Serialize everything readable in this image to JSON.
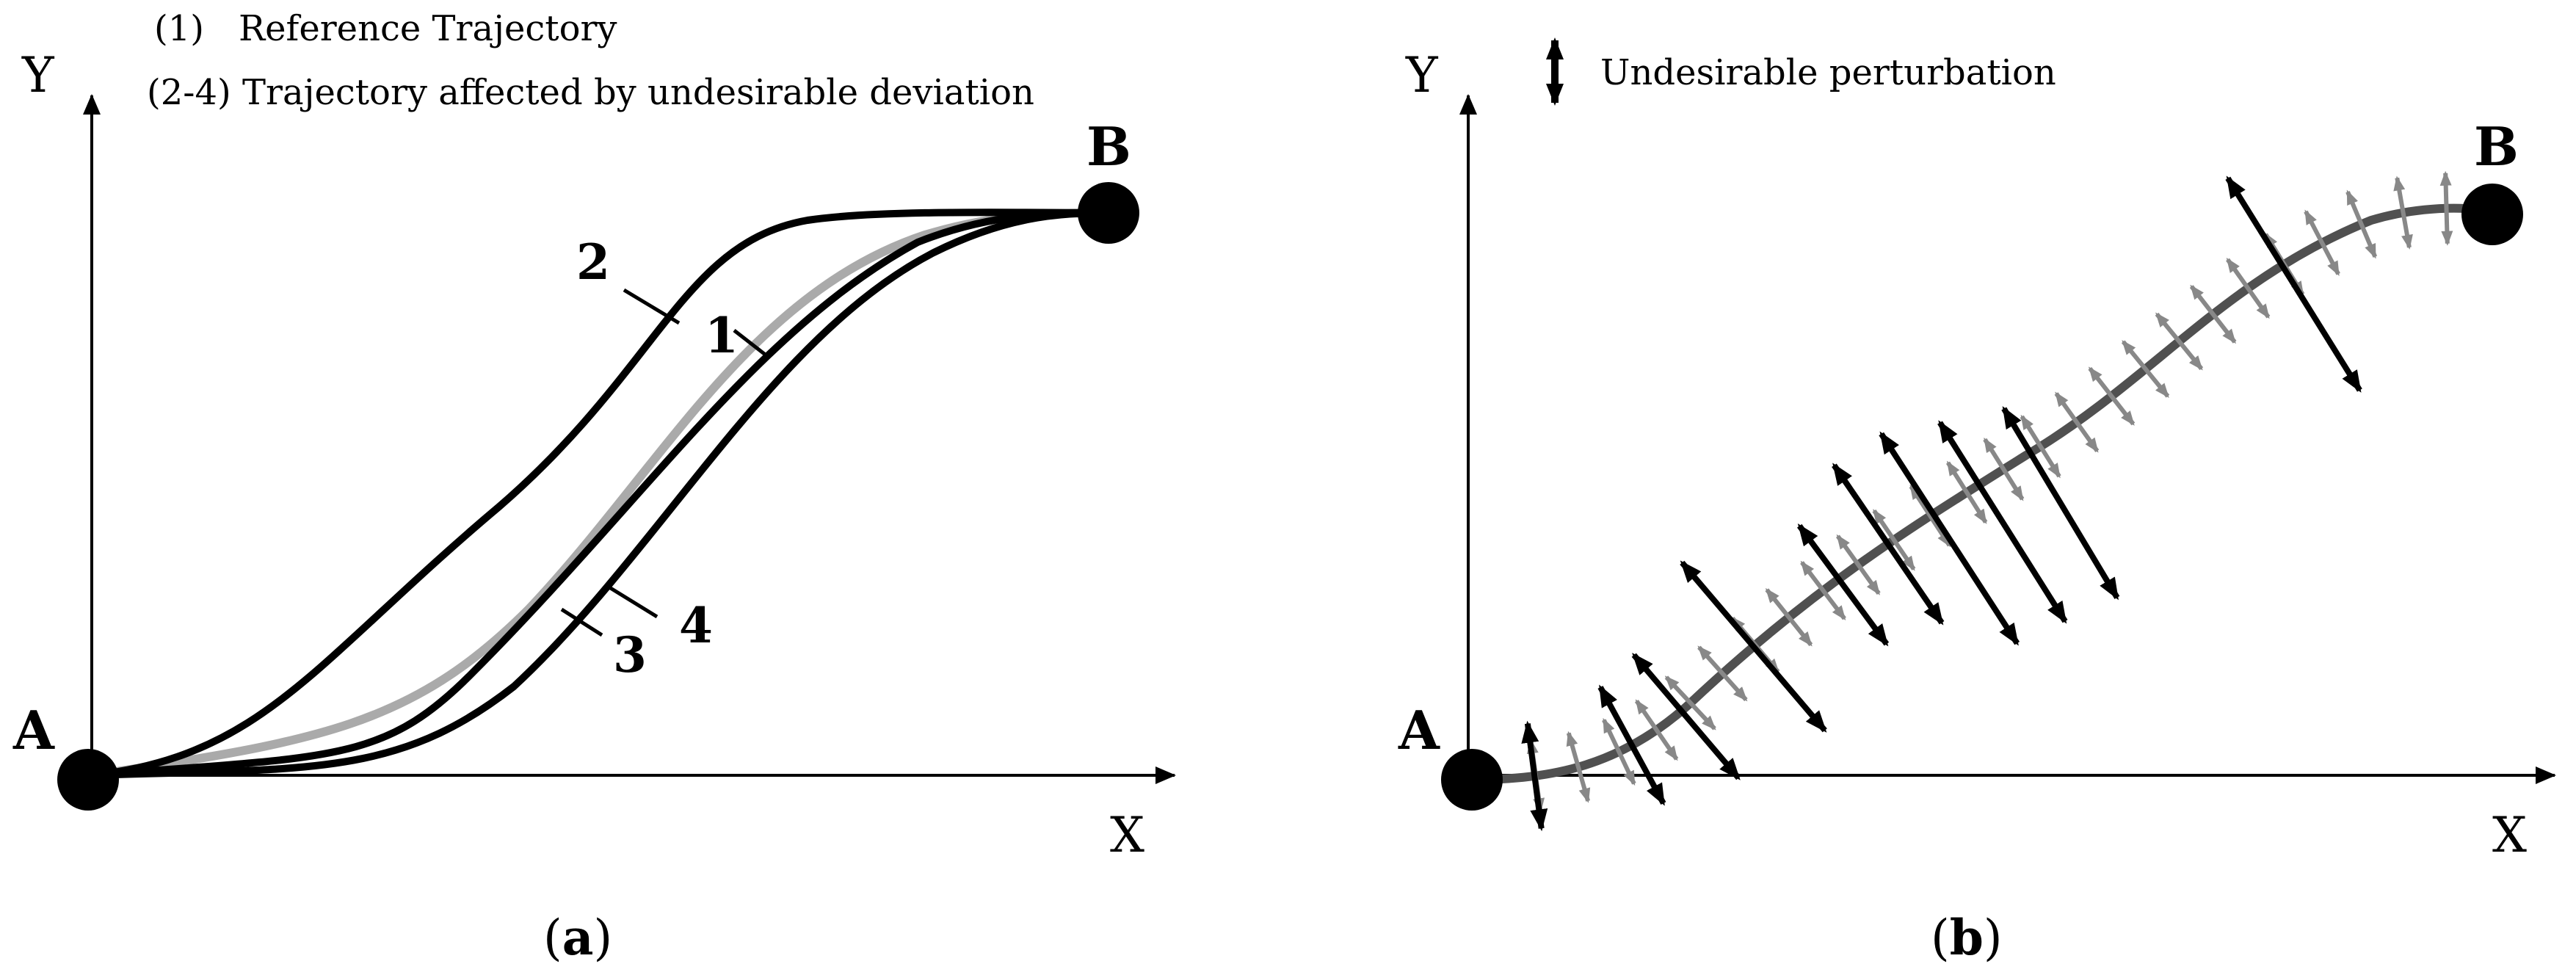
{
  "panel_a": {
    "legend": [
      {
        "key": "(1)",
        "text": "Reference Trajectory"
      },
      {
        "key": "(2-4)",
        "text": "Trajectory affected by undesirable deviation"
      }
    ],
    "axis_y_label": "Y",
    "axis_x_label": "X",
    "point_a_label": "A",
    "point_b_label": "B",
    "curve_labels": [
      "1",
      "2",
      "3",
      "4"
    ],
    "caption_open": "(",
    "caption_letter": "a",
    "caption_close": ")"
  },
  "panel_b": {
    "legend_text": "Undesirable perturbation",
    "axis_y_label": "Y",
    "axis_x_label": "X",
    "point_a_label": "A",
    "point_b_label": "B",
    "caption_open": "(",
    "caption_letter": "b",
    "caption_close": ")"
  },
  "colors": {
    "reference_curve": "#aaaaaa",
    "deviated_curve": "#000000",
    "trajectory_b": "#505050",
    "small_arrow": "#888888",
    "large_arrow": "#000000"
  }
}
